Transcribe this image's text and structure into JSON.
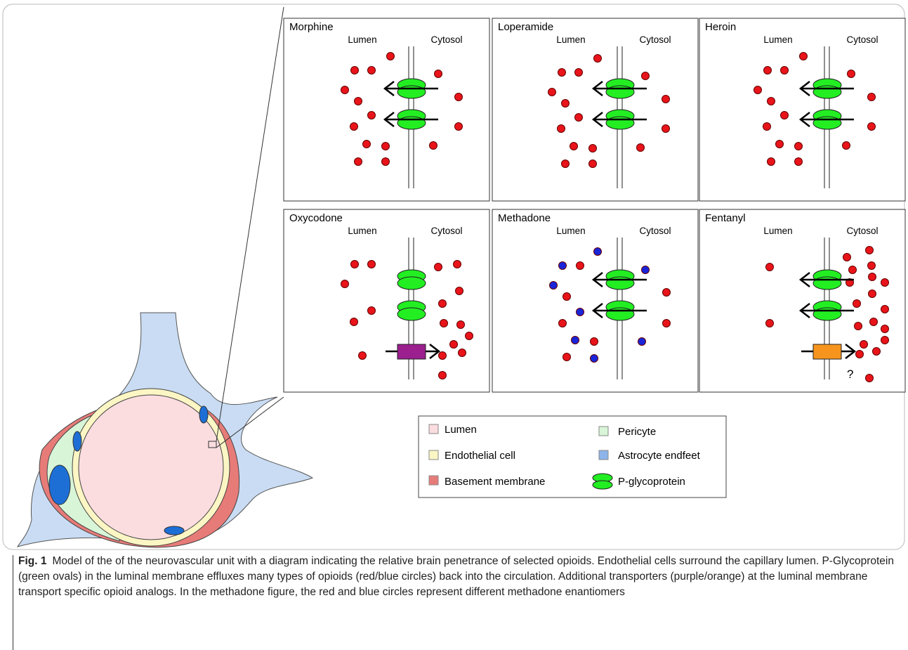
{
  "panels": [
    {
      "title": "Morphine",
      "lumen": "Lumen",
      "cytosol": "Cytosol"
    },
    {
      "title": "Loperamide",
      "lumen": "Lumen",
      "cytosol": "Cytosol"
    },
    {
      "title": "Heroin",
      "lumen": "Lumen",
      "cytosol": "Cytosol"
    },
    {
      "title": "Oxycodone",
      "lumen": "Lumen",
      "cytosol": "Cytosol"
    },
    {
      "title": "Methadone",
      "lumen": "Lumen",
      "cytosol": "Cytosol"
    },
    {
      "title": "Fentanyl",
      "lumen": "Lumen",
      "cytosol": "Cytosol",
      "note": "?"
    }
  ],
  "legend": {
    "items": [
      "Lumen",
      "Endothelial cell",
      "Basement membrane",
      "Pericyte",
      "Astrocyte endfeet",
      "P-glycoprotein"
    ]
  },
  "caption": {
    "label": "Fig. 1",
    "text": "Model of the of the neurovascular unit with a diagram indicating the relative brain penetrance of selected opioids. Endothelial cells surround the capillary lumen. P-Glycoprotein (green ovals) in the luminal membrane effluxes many types of opioids (red/blue circles) back into the circulation. Additional transporters (purple/orange) at the luminal membrane transport specific opioid analogs. In the methadone figure, the red and blue circles represent different methadone enantiomers"
  }
}
